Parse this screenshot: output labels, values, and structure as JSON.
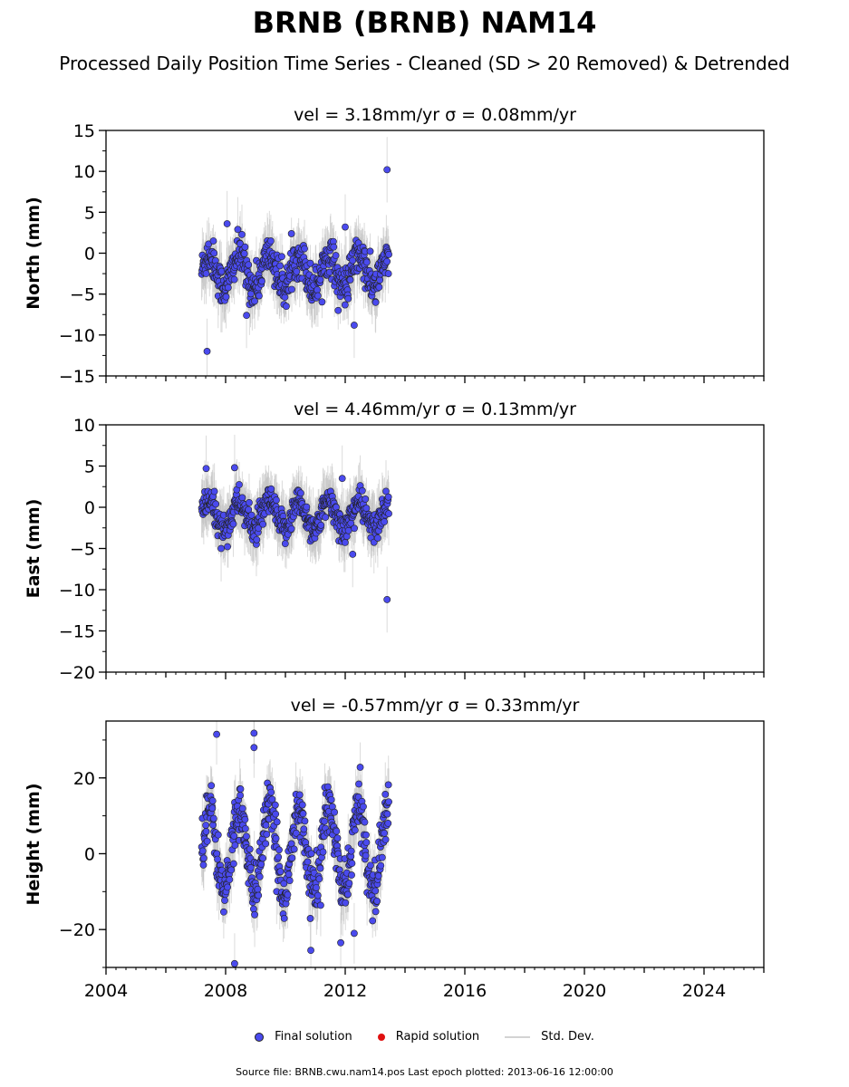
{
  "title": "BRNB (BRNB) NAM14",
  "subtitle": "Processed Daily Position Time Series - Cleaned (SD > 20 Removed) & Detrended",
  "legend": {
    "final": "Final solution",
    "rapid": "Rapid solution",
    "std": "Std. Dev."
  },
  "footer": "Source file: BRNB.cwu.nam14.pos  Last epoch plotted: 2013-06-16 12:00:00",
  "colors": {
    "final": "#4a4aee",
    "rapid": "#e01010",
    "std": "#bdbdbd",
    "edge": "#222222"
  },
  "chart_data": [
    {
      "type": "scatter",
      "title": "vel = 3.18mm/yr   σ = 0.08mm/yr",
      "ylabel": "North (mm)",
      "xlim": [
        2004,
        2026
      ],
      "ylim": [
        -15,
        15
      ],
      "yticks": [
        15,
        10,
        5,
        0,
        -5,
        -10,
        -15
      ],
      "xticks": [],
      "data_range": [
        2007.2,
        2013.46
      ],
      "seasonal_amplitude": 2.0,
      "scatter_sd": 1.2,
      "offset": -2.2,
      "outliers": [
        [
          2013.4,
          10.2
        ],
        [
          2007.38,
          -12.0
        ],
        [
          2012.3,
          -8.8
        ],
        [
          2008.7,
          -7.6
        ],
        [
          2012.0,
          3.2
        ],
        [
          2008.05,
          3.6
        ]
      ]
    },
    {
      "type": "scatter",
      "title": "vel = 4.46mm/yr   σ = 0.13mm/yr",
      "ylabel": "East (mm)",
      "xlim": [
        2004,
        2026
      ],
      "ylim": [
        -20,
        10
      ],
      "yticks": [
        10,
        5,
        0,
        -5,
        -10,
        -15,
        -20
      ],
      "xticks": [],
      "data_range": [
        2007.2,
        2013.46
      ],
      "seasonal_amplitude": 1.6,
      "scatter_sd": 0.9,
      "offset": -1.0,
      "outliers": [
        [
          2013.4,
          -11.2
        ],
        [
          2007.35,
          4.7
        ],
        [
          2008.3,
          4.8
        ],
        [
          2012.25,
          -5.7
        ],
        [
          2011.9,
          3.5
        ],
        [
          2007.85,
          -5.0
        ]
      ]
    },
    {
      "type": "scatter",
      "title": "vel = -0.57mm/yr   σ = 0.33mm/yr",
      "ylabel": "Height (mm)",
      "xlim": [
        2004,
        2026
      ],
      "ylim": [
        -30,
        35
      ],
      "yticks": [
        20,
        0,
        -20
      ],
      "xticks": [
        "2004",
        "2008",
        "2012",
        "2016",
        "2020",
        "2024"
      ],
      "data_range": [
        2007.2,
        2013.46
      ],
      "seasonal_amplitude": 11.0,
      "scatter_sd": 3.5,
      "offset": 1.0,
      "outliers": [
        [
          2007.7,
          31.5
        ],
        [
          2008.95,
          31.8
        ],
        [
          2008.95,
          28.0
        ],
        [
          2008.3,
          -29.0
        ],
        [
          2010.85,
          -25.5
        ],
        [
          2011.85,
          -23.5
        ],
        [
          2012.3,
          -21.0
        ]
      ]
    }
  ]
}
